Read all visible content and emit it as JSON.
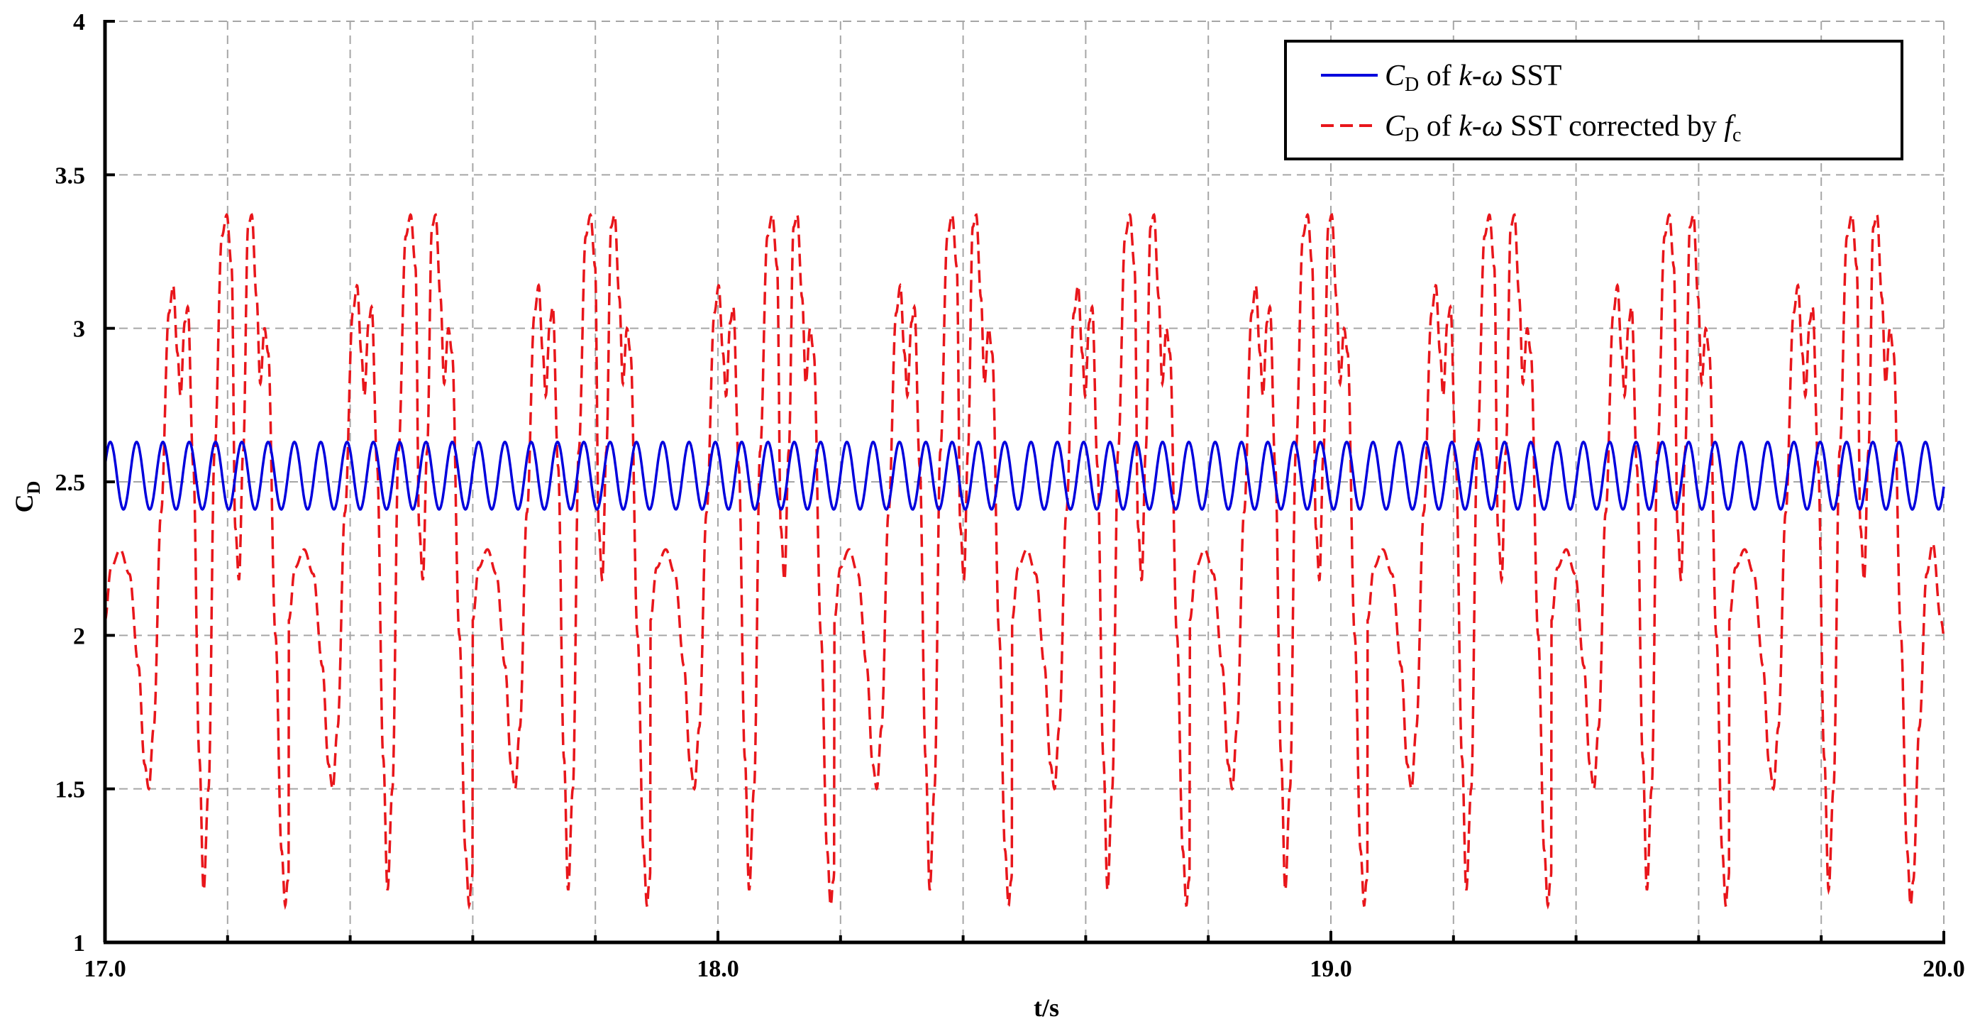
{
  "chart_data": {
    "type": "line",
    "xlabel": "t/s",
    "ylabel": "C",
    "ylabel_sub": "D",
    "xlim": [
      17.0,
      20.0
    ],
    "ylim": [
      1,
      4
    ],
    "x_ticks": [
      "17.0",
      "18.0",
      "19.0",
      "20.0"
    ],
    "x_tick_values": [
      17.0,
      18.0,
      19.0,
      20.0
    ],
    "y_ticks": [
      "1",
      "1.5",
      "2",
      "2.5",
      "3",
      "3.5",
      "4"
    ],
    "y_tick_values": [
      1,
      1.5,
      2,
      2.5,
      3,
      3.5,
      4
    ],
    "x_grid": [
      17.2,
      17.4,
      17.6,
      17.8,
      18.2,
      18.4,
      18.6,
      18.8,
      19.2,
      19.4,
      19.6,
      19.8
    ],
    "grid": true,
    "legend_position": "top-right",
    "series": [
      {
        "name": "of k-ω SST",
        "legend": {
          "italic_prefix": "C",
          "sub": "D",
          "text1": " of ",
          "italic_mid": "k-ω",
          "text2": " SST"
        },
        "color": "#0000dd",
        "dash": "solid",
        "model": {
          "kind": "sine",
          "mean": 2.52,
          "amplitude": 0.11,
          "cycles_per_unit": 23.3,
          "phase": 0.3
        },
        "summary": {
          "min": 2.41,
          "max": 2.63
        }
      },
      {
        "name": "of k-ω SST corrected by f",
        "legend": {
          "italic_prefix": "C",
          "sub": "D",
          "text1": " of ",
          "italic_mid": "k-ω",
          "text2": " SST corrected by ",
          "italic_end": "f",
          "end_sub": "c"
        },
        "color": "#e8161b",
        "dash": "dashed",
        "cycle_starts": [
          17.0,
          17.3,
          17.6,
          17.89,
          18.19,
          18.48,
          18.77,
          19.06,
          19.36,
          19.65
        ],
        "peak_maxima": [
          3.37,
          3.37,
          3.37,
          3.38,
          3.38,
          3.38,
          3.38,
          3.38,
          3.39,
          3.38
        ],
        "summary": {
          "min": 1.1,
          "max": 3.4
        }
      }
    ]
  },
  "colors": {
    "blue_series": "#0000dd",
    "red_series": "#e8161b",
    "grid": "#a6a6a6",
    "axis": "#000000"
  }
}
